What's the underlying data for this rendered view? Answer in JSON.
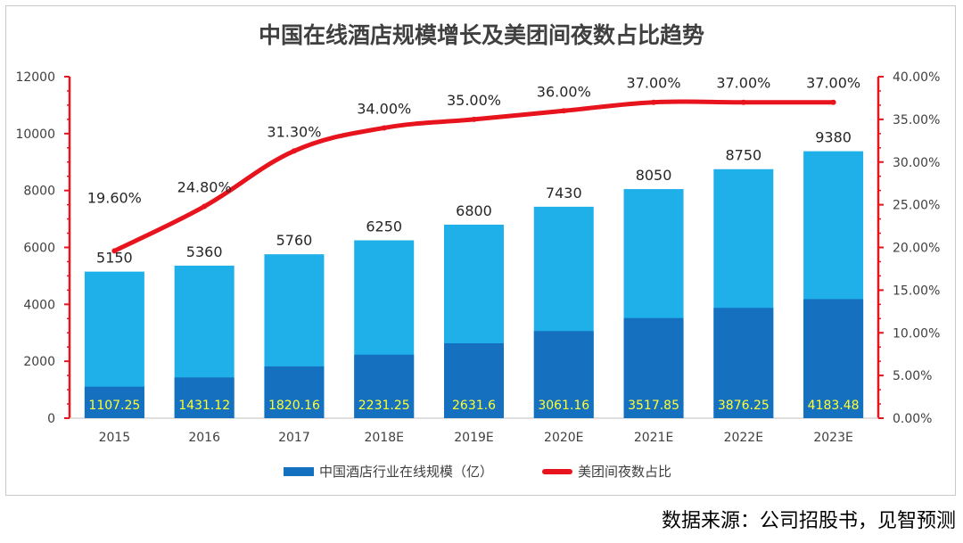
{
  "title": "中国在线酒店规模增长及美团间夜数占比趋势",
  "source": "数据来源：公司招股书，见智预测",
  "chart_data": {
    "type": "bar",
    "categories": [
      "2015",
      "2016",
      "2017",
      "2018E",
      "2019E",
      "2020E",
      "2021E",
      "2022E",
      "2023E"
    ],
    "bars_total": [
      5150,
      5360,
      5760,
      6250,
      6800,
      7430,
      8050,
      8750,
      9380
    ],
    "series": [
      {
        "name": "中国酒店行业在线规模（亿）",
        "values": [
          1107.25,
          1431.12,
          1820.16,
          2231.25,
          2631.6,
          3061.16,
          3517.85,
          3876.25,
          4183.48
        ],
        "color": "#1570c0"
      },
      {
        "name": "美团间夜数占比",
        "values": [
          19.6,
          24.8,
          31.3,
          34.0,
          35.0,
          36.0,
          37.0,
          37.0,
          37.0
        ],
        "color": "#e8141d",
        "axis": "right"
      }
    ],
    "bars_total_color": "#1fb0ea",
    "inner_label_color": "#ffff33",
    "line_labels": [
      "19.60%",
      "24.80%",
      "31.30%",
      "34.00%",
      "35.00%",
      "36.00%",
      "37.00%",
      "37.00%",
      "37.00%"
    ],
    "inner_labels": [
      "1107.25",
      "1431.12",
      "1820.16",
      "2231.25",
      "2631.6",
      "3061.16",
      "3517.85",
      "3876.25",
      "4183.48"
    ],
    "ylim_left": [
      0,
      12000
    ],
    "ylim_right": [
      0,
      40
    ],
    "left_ticks": [
      "0",
      "2000",
      "4000",
      "6000",
      "8000",
      "10000",
      "12000"
    ],
    "right_ticks": [
      "0.00%",
      "5.00%",
      "10.00%",
      "15.00%",
      "20.00%",
      "25.00%",
      "30.00%",
      "35.00%",
      "40.00%"
    ],
    "legend_placement": "bottom",
    "grid": false
  }
}
